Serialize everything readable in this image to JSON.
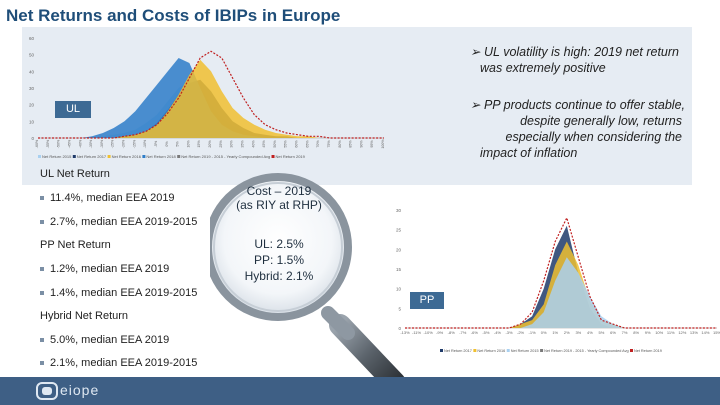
{
  "title": "Net Returns and Costs of IBIPs in Europe",
  "callouts": {
    "ul_volatility": [
      "UL volatility is high: 2019 net return",
      "was extremely positive"
    ],
    "pp_stable": [
      "PP products continue to offer stable,",
      "despite generally low, returns",
      "especially when considering the",
      "impact of inflation"
    ]
  },
  "tags": {
    "ul": "UL",
    "pp": "PP"
  },
  "ul_section": {
    "heading": "UL Net Return",
    "items": [
      "11.4%, median EEA 2019",
      "2.7%, median EEA 2019-2015"
    ]
  },
  "pp_section": {
    "heading": "PP Net Return",
    "items": [
      "1.2%, median EEA 2019",
      "1.4%, median EEA 2019-2015"
    ]
  },
  "hybrid_section": {
    "heading": "Hybrid Net Return",
    "items": [
      "5.0%, median EEA 2019",
      "2.1%, median EEA 2019-2015"
    ]
  },
  "magnifier": {
    "title_line1": "Cost – 2019",
    "title_line2": "(as RIY at RHP)",
    "ul": "UL: 2.5%",
    "pp": "PP: 1.5%",
    "hybrid": "Hybrid: 2.1%"
  },
  "footer": {
    "logo_text": "eiope"
  },
  "colors": {
    "title": "#1f4e79",
    "panel": "#e6ecf3",
    "tag": "#3d6a94",
    "footer": "#3e5f85",
    "series_2017": "#1f3a6a",
    "series_2016": "#f0c030",
    "series_2015": "#a9d0f0",
    "series_2018": "#2d7dc8",
    "series_2019": "#c02020"
  },
  "chart_data": [
    {
      "type": "area",
      "ylim": [
        0,
        60
      ],
      "yticks": [
        "0",
        "10",
        "20",
        "30",
        "40",
        "50",
        "60"
      ],
      "x": [
        -60,
        -55,
        -50,
        -45,
        -40,
        -35,
        -30,
        -25,
        -20,
        -15,
        -10,
        -5,
        0,
        5,
        10,
        15,
        20,
        25,
        30,
        35,
        40,
        45,
        50,
        55,
        60,
        65,
        70,
        75,
        80,
        85,
        90,
        95,
        100
      ],
      "legend": [
        "Net Return 2015",
        "Net Return 2017",
        "Net Return 2016",
        "Net Return 2018",
        "Net Return 2019 - 2015 - Yearly Compounded Avg",
        "Net Return 2019"
      ],
      "series": [
        {
          "name": "Net Return 2015",
          "values": [
            0,
            0,
            0,
            0,
            0,
            0,
            1,
            2,
            3,
            5,
            9,
            14,
            22,
            30,
            34,
            30,
            20,
            12,
            7,
            4,
            2,
            1,
            1,
            0,
            0,
            0,
            0,
            0,
            0,
            0,
            0,
            0,
            0
          ]
        },
        {
          "name": "Net Return 2017",
          "values": [
            0,
            0,
            0,
            0,
            0,
            0,
            0,
            0,
            1,
            2,
            4,
            9,
            17,
            26,
            33,
            35,
            28,
            18,
            10,
            6,
            3,
            2,
            1,
            1,
            0,
            0,
            0,
            0,
            0,
            0,
            0,
            0,
            0
          ]
        },
        {
          "name": "Net Return 2018",
          "values": [
            0,
            0,
            0,
            0,
            0,
            1,
            3,
            6,
            10,
            16,
            24,
            32,
            40,
            48,
            45,
            30,
            16,
            8,
            4,
            2,
            1,
            0,
            0,
            0,
            0,
            0,
            0,
            0,
            0,
            0,
            0,
            0,
            0
          ]
        },
        {
          "name": "Net Return 2016",
          "values": [
            0,
            0,
            0,
            0,
            0,
            0,
            0,
            0,
            1,
            2,
            4,
            8,
            16,
            26,
            38,
            47,
            40,
            28,
            18,
            12,
            8,
            5,
            3,
            2,
            1,
            1,
            0,
            0,
            0,
            0,
            0,
            0,
            0
          ]
        },
        {
          "name": "Net Return 2019",
          "values": [
            0,
            0,
            0,
            0,
            0,
            0,
            0,
            0,
            1,
            2,
            4,
            8,
            15,
            24,
            36,
            48,
            52,
            48,
            36,
            24,
            14,
            8,
            5,
            3,
            2,
            1,
            1,
            0,
            0,
            0,
            0,
            0,
            0
          ]
        }
      ]
    },
    {
      "type": "area",
      "ylim": [
        0,
        30
      ],
      "yticks": [
        "0",
        "5",
        "10",
        "15",
        "20",
        "25",
        "30"
      ],
      "xticks": [
        "-13%",
        "-11%",
        "-10%",
        "-9%",
        "-8%",
        "-7%",
        "-6%",
        "-5%",
        "-4%",
        "-3%",
        "-2%",
        "-1%",
        "0%",
        "1%",
        "2%",
        "3%",
        "4%",
        "5%",
        "6%",
        "7%",
        "8%",
        "9%",
        "10%",
        "11%",
        "12%",
        "13%",
        "14%",
        "15%"
      ],
      "legend": [
        "Net Return 2017",
        "Net Return 2016",
        "Net Return 2015",
        "Net Return 2019 - 2015 - Yearly Compounded Avg",
        "Net Return 2019"
      ],
      "series": [
        {
          "name": "Net Return 2017",
          "values": [
            0,
            0,
            0,
            0,
            0,
            0,
            0,
            0,
            0,
            0,
            1,
            3,
            10,
            20,
            26,
            14,
            5,
            1,
            0,
            0,
            0,
            0,
            0,
            0,
            0,
            0,
            0,
            0
          ]
        },
        {
          "name": "Net Return 2016",
          "values": [
            0,
            0,
            0,
            0,
            0,
            0,
            0,
            0,
            0,
            0,
            1,
            2,
            6,
            16,
            22,
            16,
            7,
            2,
            1,
            0,
            0,
            0,
            0,
            0,
            0,
            0,
            0,
            0
          ]
        },
        {
          "name": "Net Return 2015",
          "values": [
            0,
            0,
            0,
            0,
            0,
            0,
            0,
            0,
            0,
            0,
            0,
            1,
            4,
            12,
            18,
            14,
            8,
            3,
            1,
            0,
            0,
            0,
            0,
            0,
            0,
            0,
            0,
            0
          ]
        },
        {
          "name": "Net Return 2019",
          "values": [
            0,
            0,
            0,
            0,
            0,
            0,
            0,
            0,
            0,
            0,
            1,
            4,
            12,
            22,
            28,
            18,
            8,
            2,
            1,
            0,
            0,
            0,
            0,
            0,
            0,
            0,
            0,
            0
          ]
        }
      ]
    }
  ]
}
